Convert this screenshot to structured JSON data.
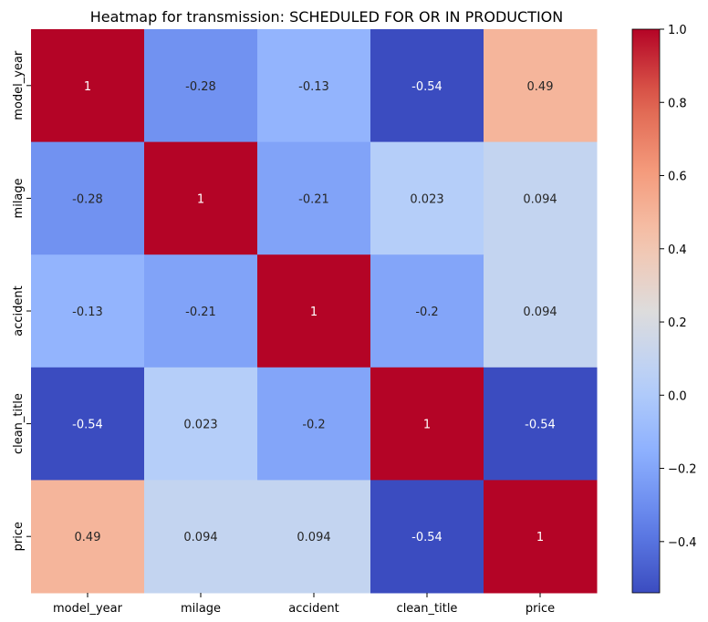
{
  "chart_data": {
    "type": "heatmap",
    "title": "Heatmap for transmission: SCHEDULED FOR OR IN PRODUCTION",
    "xlabel": "",
    "ylabel": "",
    "columns": [
      "model_year",
      "milage",
      "accident",
      "clean_title",
      "price"
    ],
    "rows": [
      "model_year",
      "milage",
      "accident",
      "clean_title",
      "price"
    ],
    "values": [
      [
        1,
        -0.28,
        -0.13,
        -0.54,
        0.49
      ],
      [
        -0.28,
        1,
        -0.21,
        0.023,
        0.094
      ],
      [
        -0.13,
        -0.21,
        1,
        -0.2,
        0.094
      ],
      [
        -0.54,
        0.023,
        -0.2,
        1,
        -0.54
      ],
      [
        0.49,
        0.094,
        0.094,
        -0.54,
        1
      ]
    ],
    "annotations": [
      [
        "1",
        "-0.28",
        "-0.13",
        "-0.54",
        "0.49"
      ],
      [
        "-0.28",
        "1",
        "-0.21",
        "0.023",
        "0.094"
      ],
      [
        "-0.13",
        "-0.21",
        "1",
        "-0.2",
        "0.094"
      ],
      [
        "-0.54",
        "0.023",
        "-0.2",
        "1",
        "-0.54"
      ],
      [
        "0.49",
        "0.094",
        "0.094",
        "-0.54",
        "1"
      ]
    ],
    "colormap": "coolwarm",
    "vmin": -0.54,
    "vmax": 1.0,
    "colorbar_ticks": [
      "1.0",
      "0.8",
      "0.6",
      "0.4",
      "0.2",
      "0.0",
      "−0.2",
      "−0.4"
    ],
    "colorbar_tick_values": [
      1.0,
      0.8,
      0.6,
      0.4,
      0.2,
      0.0,
      -0.2,
      -0.4
    ]
  }
}
